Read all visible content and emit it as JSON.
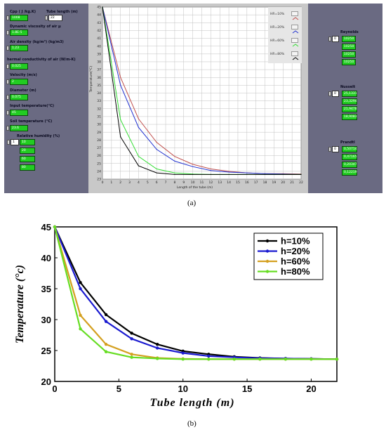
{
  "panel_a": {
    "caption": "(a)",
    "left_panel": {
      "cpp_label": "Cpp ( J /kg.K)",
      "cpp_value": "1008",
      "tube_length_label": "Tube length (m)",
      "tube_length_value": "22",
      "dyn_visc_label": "Dynamic viscosity of air µ",
      "dyn_visc_value": "1.8E-5",
      "air_density_label": "Air density (kg/m³) (kg/m3)",
      "air_density_value": "1.23",
      "thermal_cond_label": "hermal conductivity of air (W/m-K)",
      "thermal_cond_value": "0.025",
      "velocity_label": "Velocity (m/s)",
      "velocity_value": "2",
      "diameter_label": "Diameter (m)",
      "diameter_value": "0.075",
      "input_temp_label": "Input temperature(°C)",
      "input_temp_value": "45",
      "soil_temp_label": "Soil temperature (°C)",
      "soil_temp_value": "23.6",
      "rh_label": "Relative humidity (%)",
      "rh_index": "1",
      "rh_values": [
        "10",
        "20",
        "60",
        "80"
      ]
    },
    "right_panel": {
      "reynolds_label": "Reynolds",
      "reynolds_index": "0",
      "reynolds_values": [
        "10250",
        "10250",
        "10250",
        "10250"
      ],
      "nusselt_label": "Nusselt",
      "nusselt_index": "0",
      "nusselt_values": [
        "25,1331",
        "23,3294",
        "21,9478",
        "18,9083"
      ],
      "prandtl_label": "Prandtl",
      "prandtl_index": "0",
      "prandtl_values": [
        "0,50714",
        "0,47165",
        "0,20347",
        "0,12219"
      ]
    }
  },
  "panel_b": {
    "caption": "(b)"
  },
  "colors": {
    "a_hr10": "#c0504d",
    "a_hr20": "#2030d0",
    "a_hr60": "#33dd33",
    "a_hr80": "#000000",
    "b_h10": "#000000",
    "b_h20": "#1a1ad0",
    "b_h60": "#d4a020",
    "b_h80": "#66dd22"
  },
  "chart_data": [
    {
      "type": "line",
      "xlabel": "Length of the tube (m)",
      "ylabel": "Temperature(°C)",
      "xlim": [
        0,
        22
      ],
      "ylim": [
        23,
        45
      ],
      "xticks": [
        0,
        1,
        2,
        3,
        4,
        5,
        6,
        7,
        8,
        9,
        10,
        11,
        12,
        13,
        14,
        15,
        16,
        17,
        18,
        19,
        20,
        21,
        22
      ],
      "yticks": [
        23,
        24,
        25,
        26,
        27,
        28,
        29,
        30,
        31,
        32,
        33,
        34,
        35,
        36,
        37,
        38,
        39,
        40,
        41,
        42,
        43,
        44,
        45
      ],
      "grid": true,
      "legend_position": "top-right",
      "series": [
        {
          "name": "HR=10%",
          "x": [
            0,
            2,
            4,
            6,
            8,
            10,
            12,
            14,
            16,
            18,
            20,
            22
          ],
          "values": [
            45,
            36,
            30.7,
            27.7,
            25.9,
            24.9,
            24.3,
            24.0,
            23.8,
            23.7,
            23.7,
            23.65
          ]
        },
        {
          "name": "HR=20%",
          "x": [
            0,
            2,
            4,
            6,
            8,
            10,
            12,
            14,
            16,
            18,
            20,
            22
          ],
          "values": [
            45,
            35,
            29.6,
            26.8,
            25.3,
            24.6,
            24.1,
            23.9,
            23.8,
            23.7,
            23.65,
            23.6
          ]
        },
        {
          "name": "HR=60%",
          "x": [
            0,
            2,
            4,
            6,
            8,
            10,
            12,
            14,
            16,
            18,
            20,
            22
          ],
          "values": [
            45,
            30.6,
            25.9,
            24.3,
            23.8,
            23.65,
            23.6,
            23.6,
            23.6,
            23.6,
            23.6,
            23.6
          ]
        },
        {
          "name": "HR=80%",
          "x": [
            0,
            2,
            4,
            6,
            8,
            10,
            12,
            14,
            16,
            18,
            20,
            22
          ],
          "values": [
            45,
            28.4,
            24.7,
            23.8,
            23.6,
            23.6,
            23.6,
            23.6,
            23.6,
            23.6,
            23.6,
            23.6
          ]
        }
      ]
    },
    {
      "type": "line",
      "xlabel": "Tube length (m)",
      "ylabel": "Temperature (°c)",
      "xlim": [
        0,
        22
      ],
      "ylim": [
        20,
        45
      ],
      "xticks": [
        0,
        5,
        10,
        15,
        20
      ],
      "yticks": [
        20,
        25,
        30,
        35,
        40,
        45
      ],
      "grid": false,
      "legend_position": "top-right",
      "series": [
        {
          "name": "h=10%",
          "x": [
            0,
            2,
            4,
            6,
            8,
            10,
            12,
            14,
            16,
            18,
            20,
            22
          ],
          "values": [
            45,
            36.0,
            30.8,
            27.8,
            26.0,
            24.9,
            24.4,
            24.0,
            23.8,
            23.7,
            23.65,
            23.6
          ]
        },
        {
          "name": "h=20%",
          "x": [
            0,
            2,
            4,
            6,
            8,
            10,
            12,
            14,
            16,
            18,
            20,
            22
          ],
          "values": [
            45,
            35.0,
            29.7,
            26.9,
            25.4,
            24.6,
            24.1,
            23.9,
            23.75,
            23.7,
            23.65,
            23.6
          ]
        },
        {
          "name": "h=60%",
          "x": [
            0,
            2,
            4,
            6,
            8,
            10,
            12,
            14,
            16,
            18,
            20,
            22
          ],
          "values": [
            45,
            30.7,
            26.0,
            24.4,
            23.8,
            23.65,
            23.6,
            23.6,
            23.6,
            23.6,
            23.6,
            23.6
          ]
        },
        {
          "name": "h=80%",
          "x": [
            0,
            2,
            4,
            6,
            8,
            10,
            12,
            14,
            16,
            18,
            20,
            22
          ],
          "values": [
            45,
            28.5,
            24.8,
            23.9,
            23.7,
            23.6,
            23.6,
            23.6,
            23.6,
            23.6,
            23.6,
            23.6
          ]
        }
      ]
    }
  ]
}
